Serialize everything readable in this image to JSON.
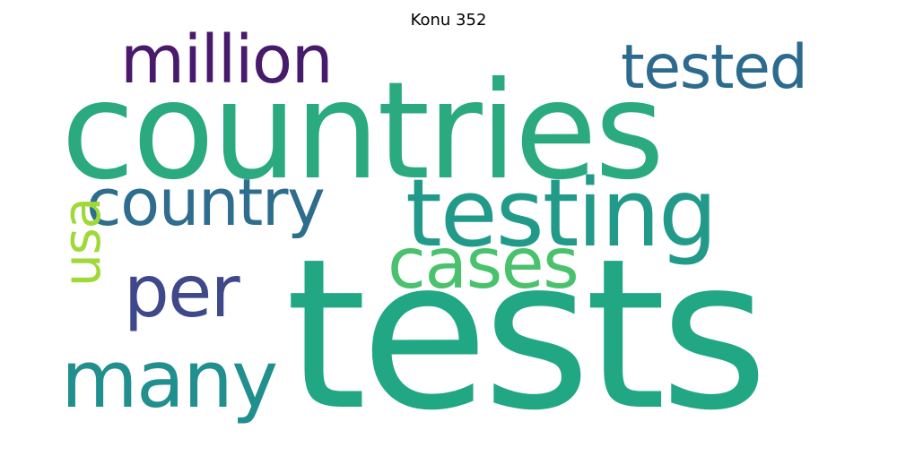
{
  "title": "Konu 352",
  "words": {
    "countries": {
      "text": "countries",
      "color": "#2aaa7e"
    },
    "tests": {
      "text": "tests",
      "color": "#22a784"
    },
    "testing": {
      "text": "testing",
      "color": "#229a8a"
    },
    "million": {
      "text": "million",
      "color": "#481a6c"
    },
    "tested": {
      "text": "tested",
      "color": "#2c6b8e"
    },
    "country": {
      "text": "country",
      "color": "#2e6d8e"
    },
    "cases": {
      "text": "cases",
      "color": "#4ac26d"
    },
    "per": {
      "text": "per",
      "color": "#3f4889"
    },
    "many": {
      "text": "many",
      "color": "#218f8d"
    },
    "usa": {
      "text": "usa",
      "color": "#9fd938"
    }
  }
}
